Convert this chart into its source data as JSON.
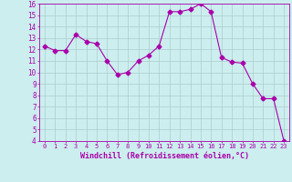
{
  "x": [
    0,
    1,
    2,
    3,
    4,
    5,
    6,
    7,
    8,
    9,
    10,
    11,
    12,
    13,
    14,
    15,
    16,
    17,
    18,
    19,
    20,
    21,
    22,
    23
  ],
  "y": [
    12.3,
    11.9,
    11.9,
    13.3,
    12.7,
    12.5,
    11.0,
    9.8,
    10.0,
    11.0,
    11.5,
    12.3,
    15.3,
    15.3,
    15.5,
    16.0,
    15.3,
    11.3,
    10.9,
    10.8,
    9.0,
    7.7,
    7.7,
    4.0
  ],
  "line_color": "#aa00aa",
  "marker": "D",
  "markersize": 2.5,
  "bg_color": "#cceeee",
  "grid_color": "#aacccc",
  "xlabel": "Windchill (Refroidissement éolien,°C)",
  "xlabel_color": "#aa00aa",
  "tick_color": "#aa00aa",
  "ylim": [
    4,
    16
  ],
  "yticks": [
    4,
    5,
    6,
    7,
    8,
    9,
    10,
    11,
    12,
    13,
    14,
    15,
    16
  ],
  "xticks": [
    0,
    1,
    2,
    3,
    4,
    5,
    6,
    7,
    8,
    9,
    10,
    11,
    12,
    13,
    14,
    15,
    16,
    17,
    18,
    19,
    20,
    21,
    22,
    23
  ],
  "xlim": [
    -0.5,
    23.5
  ]
}
